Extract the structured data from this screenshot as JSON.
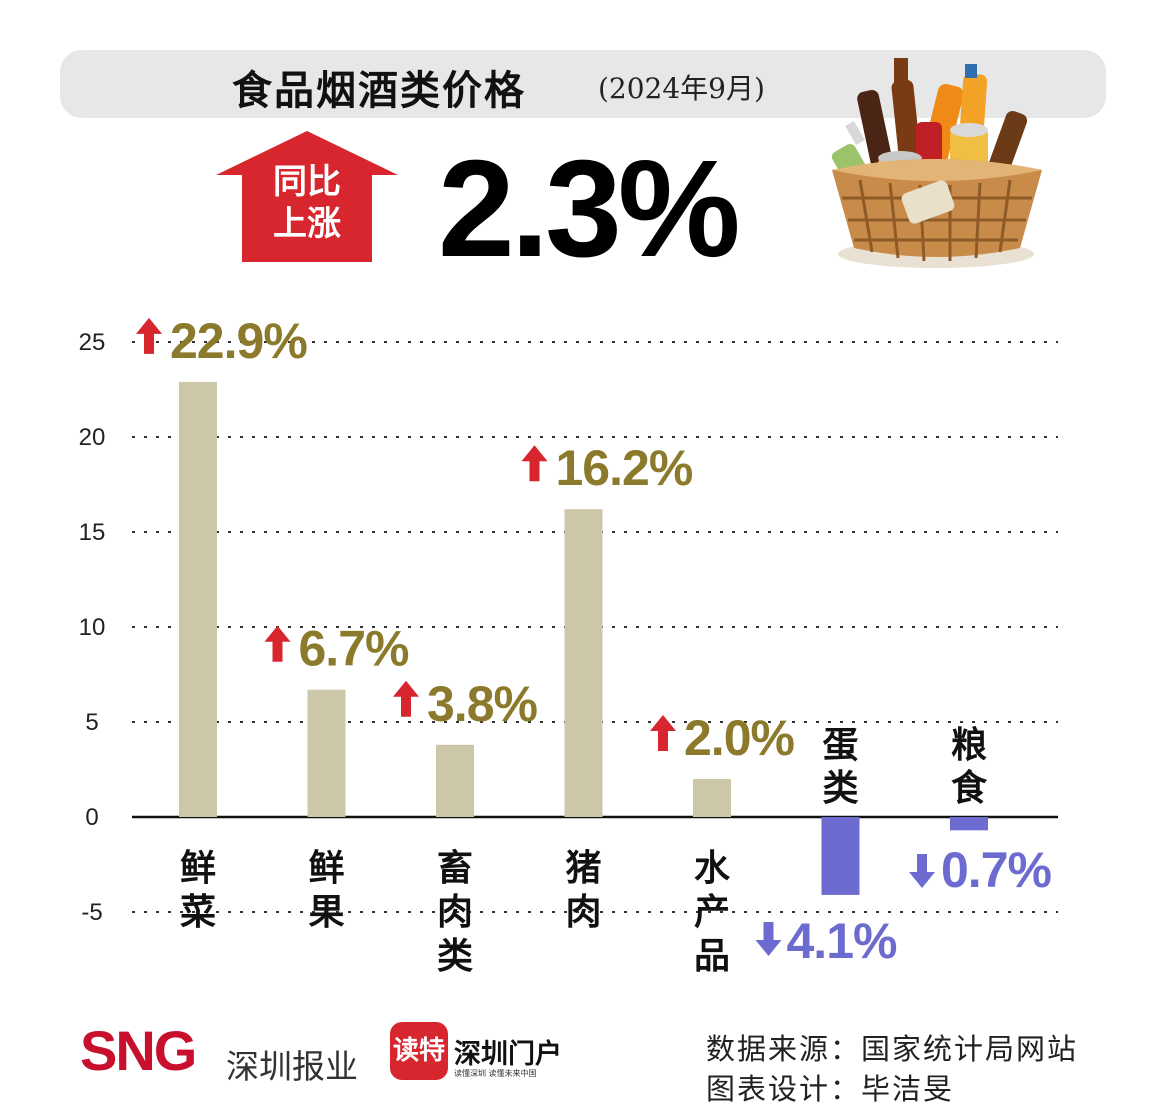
{
  "title": "食品烟酒类价格",
  "title_date": "(2024年9月)",
  "badge": {
    "line1": "同比",
    "line2": "上涨",
    "color": "#d7262e"
  },
  "headline_value": "2.3%",
  "chart_data": {
    "type": "bar",
    "categories": [
      "鲜菜",
      "鲜果",
      "畜肉类",
      "猪肉",
      "水产品",
      "蛋类",
      "粮食"
    ],
    "values": [
      22.9,
      6.7,
      3.8,
      16.2,
      2.0,
      -4.1,
      -0.7
    ],
    "data_labels": [
      "22.9%",
      "6.7%",
      "3.8%",
      "16.2%",
      "2.0%",
      "4.1%",
      "0.7%"
    ],
    "directions": [
      "up",
      "up",
      "up",
      "up",
      "up",
      "down",
      "down"
    ],
    "yticks": [
      25,
      20,
      15,
      10,
      5,
      0,
      -5
    ],
    "ylim": [
      -5,
      25
    ],
    "grid": true,
    "colors": {
      "up_bar": "#cdc7a9",
      "down_bar": "#6b6bd0",
      "up_label": "#8c7a2c",
      "down_label": "#6b6bd0",
      "up_arrow": "#d7262e",
      "down_arrow": "#6b6bd0"
    }
  },
  "footer": {
    "sng_logo": "SNG",
    "sng_name": "深圳报业",
    "dute_logo": "读特",
    "portal_logo": "深圳门户",
    "portal_tagline": "读懂深圳  读懂未来中国",
    "source": "数据来源：国家统计局网站",
    "designer": "图表设计：毕洁旻"
  }
}
